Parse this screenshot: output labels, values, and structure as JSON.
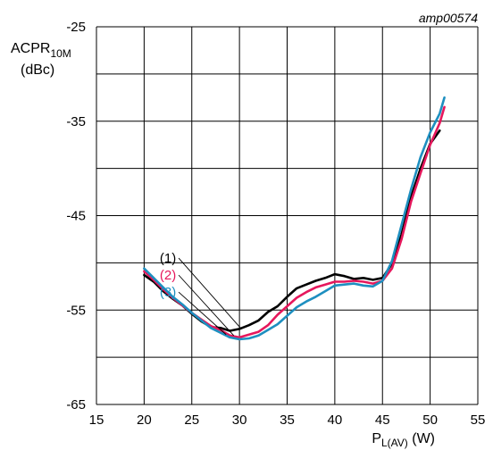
{
  "chart_data": {
    "type": "line",
    "reference": "amp00574",
    "ylabel_main": "ACPR",
    "ylabel_sub": "10M",
    "ylabel_unit": "(dBc)",
    "xlabel_main": "P",
    "xlabel_sub": "L(AV)",
    "xlabel_unit": " (W)",
    "xlim": [
      15,
      55
    ],
    "ylim": [
      -65,
      -25
    ],
    "xticks": [
      15,
      20,
      25,
      30,
      35,
      40,
      45,
      50,
      55
    ],
    "yticks": [
      -65,
      -55,
      -45,
      -35,
      -25
    ],
    "x_gridlines": [
      15,
      20,
      25,
      30,
      35,
      40,
      45,
      50,
      55
    ],
    "y_gridlines": [
      -65,
      -60,
      -55,
      -50,
      -45,
      -40,
      -35,
      -30,
      -25
    ],
    "grid": true,
    "series": [
      {
        "name": "(1)",
        "color": "#000000",
        "points": [
          [
            20,
            -51.3
          ],
          [
            21,
            -52.0
          ],
          [
            22,
            -53.0
          ],
          [
            23,
            -53.8
          ],
          [
            24,
            -54.5
          ],
          [
            25,
            -55.4
          ],
          [
            26,
            -56.2
          ],
          [
            27,
            -56.8
          ],
          [
            28,
            -56.9
          ],
          [
            29,
            -57.2
          ],
          [
            30,
            -57.0
          ],
          [
            31,
            -56.6
          ],
          [
            32,
            -56.1
          ],
          [
            33,
            -55.2
          ],
          [
            34,
            -54.6
          ],
          [
            35,
            -53.6
          ],
          [
            36,
            -52.7
          ],
          [
            37,
            -52.3
          ],
          [
            38,
            -51.9
          ],
          [
            39,
            -51.6
          ],
          [
            40,
            -51.2
          ],
          [
            41,
            -51.4
          ],
          [
            42,
            -51.7
          ],
          [
            43,
            -51.6
          ],
          [
            44,
            -51.8
          ],
          [
            45,
            -51.6
          ],
          [
            46,
            -50.1
          ],
          [
            47,
            -47.0
          ],
          [
            48,
            -43.0
          ],
          [
            49,
            -40.0
          ],
          [
            50,
            -37.4
          ],
          [
            51,
            -36.0
          ]
        ]
      },
      {
        "name": "(2)",
        "color": "#e6175c",
        "points": [
          [
            20,
            -50.9
          ],
          [
            21,
            -51.8
          ],
          [
            22,
            -52.8
          ],
          [
            23,
            -53.7
          ],
          [
            24,
            -54.5
          ],
          [
            25,
            -55.3
          ],
          [
            26,
            -56.0
          ],
          [
            27,
            -56.7
          ],
          [
            28,
            -57.1
          ],
          [
            29,
            -57.7
          ],
          [
            30,
            -57.9
          ],
          [
            31,
            -57.6
          ],
          [
            32,
            -57.3
          ],
          [
            33,
            -56.6
          ],
          [
            34,
            -55.5
          ],
          [
            35,
            -54.6
          ],
          [
            36,
            -53.7
          ],
          [
            37,
            -53.1
          ],
          [
            38,
            -52.6
          ],
          [
            39,
            -52.3
          ],
          [
            40,
            -52.0
          ],
          [
            41,
            -52.0
          ],
          [
            42,
            -51.9
          ],
          [
            43,
            -52.0
          ],
          [
            44,
            -52.2
          ],
          [
            45,
            -51.9
          ],
          [
            46,
            -50.6
          ],
          [
            47,
            -47.5
          ],
          [
            48,
            -43.5
          ],
          [
            49,
            -40.5
          ],
          [
            50,
            -37.5
          ],
          [
            51,
            -35.2
          ],
          [
            51.5,
            -33.5
          ]
        ]
      },
      {
        "name": "(3)",
        "color": "#1e8fc0",
        "points": [
          [
            20,
            -50.6
          ],
          [
            21,
            -51.6
          ],
          [
            22,
            -52.6
          ],
          [
            23,
            -53.6
          ],
          [
            24,
            -54.4
          ],
          [
            25,
            -55.3
          ],
          [
            26,
            -56.1
          ],
          [
            27,
            -56.9
          ],
          [
            28,
            -57.4
          ],
          [
            29,
            -57.9
          ],
          [
            30,
            -58.1
          ],
          [
            31,
            -58.0
          ],
          [
            32,
            -57.7
          ],
          [
            33,
            -57.1
          ],
          [
            34,
            -56.5
          ],
          [
            35,
            -55.6
          ],
          [
            36,
            -54.7
          ],
          [
            37,
            -54.1
          ],
          [
            38,
            -53.6
          ],
          [
            39,
            -53.0
          ],
          [
            40,
            -52.4
          ],
          [
            41,
            -52.3
          ],
          [
            42,
            -52.2
          ],
          [
            43,
            -52.4
          ],
          [
            44,
            -52.5
          ],
          [
            45,
            -51.9
          ],
          [
            46,
            -49.8
          ],
          [
            47,
            -46.0
          ],
          [
            48,
            -42.2
          ],
          [
            49,
            -38.8
          ],
          [
            50,
            -36.2
          ],
          [
            51,
            -34.2
          ],
          [
            51.5,
            -32.5
          ]
        ]
      }
    ],
    "callouts": [
      {
        "label": "(1)",
        "color": "#000000",
        "at": [
          22.5,
          -49.5
        ],
        "target": [
          30.2,
          -57.0
        ]
      },
      {
        "label": "(2)",
        "color": "#e6175c",
        "at": [
          22.5,
          -51.3
        ],
        "target": [
          29.4,
          -57.7
        ]
      },
      {
        "label": "(3)",
        "color": "#1e8fc0",
        "at": [
          22.5,
          -53.1
        ],
        "target": [
          28.6,
          -57.6
        ]
      }
    ]
  }
}
